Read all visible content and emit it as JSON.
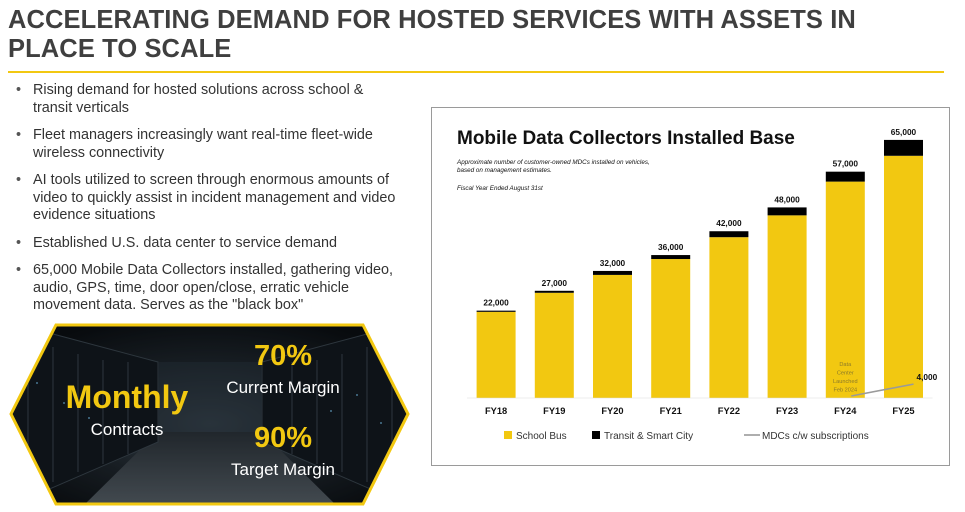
{
  "slide": {
    "title": "ACCELERATING DEMAND FOR HOSTED SERVICES WITH ASSETS IN PLACE TO SCALE",
    "title_line1": "ACCELERATING DEMAND FOR HOSTED SERVICES WITH ASSETS IN",
    "title_line2": "PLACE TO SCALE",
    "accent_color": "#f2c811",
    "bullets": [
      "Rising demand for hosted solutions across school & transit verticals",
      "Fleet managers increasingly want real-time fleet-wide wireless connectivity",
      "AI tools utilized to screen through enormous amounts of video to quickly assist in incident management and video evidence situations",
      "Established U.S. data center to service demand",
      "65,000 Mobile Data Collectors installed, gathering video, audio, GPS, time, door open/close, erratic vehicle movement data. Serves as the \"black box\""
    ]
  },
  "callout": {
    "monthly": "Monthly",
    "contracts": "Contracts",
    "current_pct": "70%",
    "current_label": "Current Margin",
    "target_pct": "90%",
    "target_label": "Target Margin"
  },
  "chart_data": {
    "type": "bar",
    "title": "Mobile Data Collectors Installed Base",
    "subtitle_line1": "Approximate number of customer-owned MDCs installed on vehicles,",
    "subtitle_line2": "based on management estimates.",
    "note": "Fiscal Year Ended August 31st",
    "categories": [
      "FY18",
      "FY19",
      "FY20",
      "FY21",
      "FY22",
      "FY23",
      "FY24",
      "FY25"
    ],
    "totals": [
      22000,
      27000,
      32000,
      36000,
      42000,
      48000,
      57000,
      65000
    ],
    "total_labels": [
      "22,000",
      "27,000",
      "32,000",
      "36,000",
      "42,000",
      "48,000",
      "57,000",
      "65,000"
    ],
    "series": [
      {
        "name": "School Bus",
        "color": "#f2c811",
        "values": [
          21700,
          26500,
          31000,
          35000,
          40500,
          46000,
          54500,
          61000
        ]
      },
      {
        "name": "Transit & Smart City",
        "color": "#000000",
        "values": [
          300,
          500,
          1000,
          1000,
          1500,
          2000,
          2500,
          4000
        ]
      }
    ],
    "line_series": {
      "name": "MDCs c/w subscriptions",
      "color": "#9a9a9a",
      "points": [
        {
          "x": "FY24",
          "y": 0
        },
        {
          "x": "FY25",
          "y": 4000
        }
      ],
      "end_label": "4,000"
    },
    "annotation": {
      "category": "FY24",
      "lines": [
        "Data",
        "Center",
        "Launched",
        "Feb 2024"
      ]
    },
    "ylim": [
      0,
      68000
    ],
    "legend_position": "bottom",
    "grid": false
  }
}
